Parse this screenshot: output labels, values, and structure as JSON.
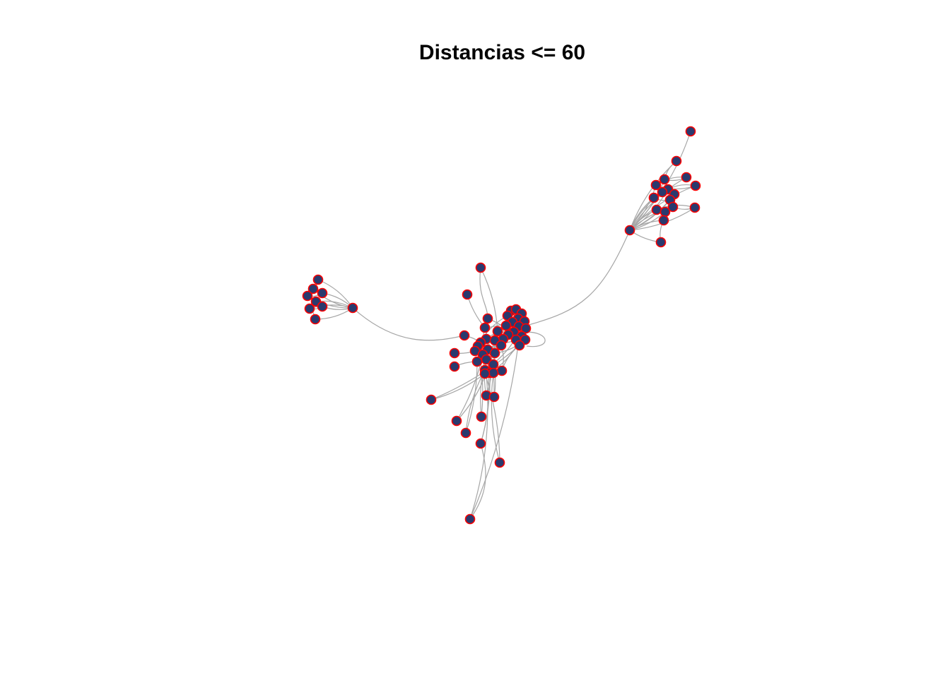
{
  "title": "Distancias <= 60",
  "colors": {
    "node_fill": "#2a3a6e",
    "node_border": "#ff0000",
    "edge": "#a6a6a6",
    "background": "#ffffff"
  },
  "graph": {
    "clusters": [
      {
        "id": "west",
        "hub": "west-hub",
        "hub_degree_visible": 9
      },
      {
        "id": "center",
        "hub": "center-core"
      },
      {
        "id": "northeast",
        "hub": "northeast-hub"
      }
    ]
  }
}
